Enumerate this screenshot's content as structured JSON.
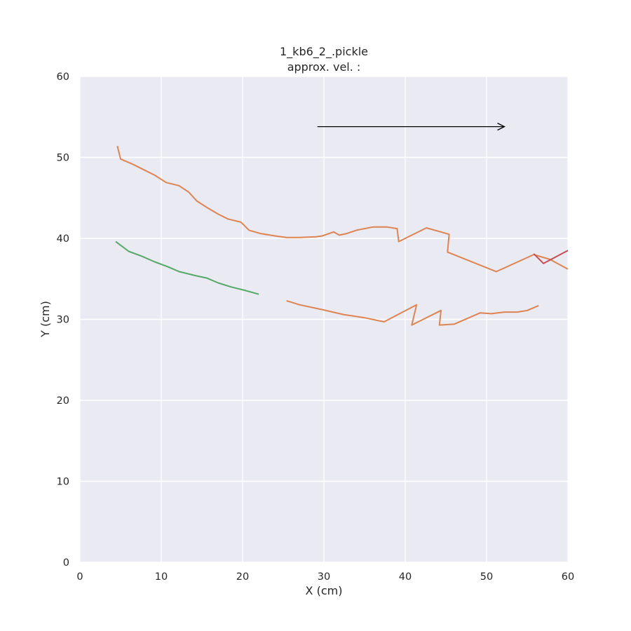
{
  "chart_data": {
    "type": "line",
    "title": "1_kb6_2_.pickle",
    "subtitle": "approx. vel. :",
    "xlabel": "X (cm)",
    "ylabel": "Y (cm)",
    "xlim": [
      0,
      60
    ],
    "ylim": [
      0,
      60
    ],
    "xticks": [
      0,
      10,
      20,
      30,
      40,
      50,
      60
    ],
    "yticks": [
      0,
      10,
      20,
      30,
      40,
      50,
      60
    ],
    "grid": true,
    "background": "#eaeaf2",
    "arrow": {
      "from": [
        29.2,
        53.8
      ],
      "to": [
        52.2,
        53.8
      ],
      "color": "#000000"
    },
    "series": [
      {
        "color": "#dd8452",
        "points": [
          [
            4.6,
            51.4
          ],
          [
            5.0,
            49.8
          ],
          [
            6.4,
            49.2
          ],
          [
            7.8,
            48.5
          ],
          [
            9.2,
            47.8
          ],
          [
            10.6,
            46.9
          ],
          [
            12.2,
            46.5
          ],
          [
            13.4,
            45.7
          ],
          [
            14.4,
            44.6
          ],
          [
            15.8,
            43.7
          ],
          [
            17.0,
            43.0
          ],
          [
            18.2,
            42.4
          ],
          [
            19.8,
            42.0
          ],
          [
            20.8,
            41.0
          ],
          [
            22.2,
            40.6
          ],
          [
            24.0,
            40.3
          ],
          [
            25.4,
            40.1
          ],
          [
            27.0,
            40.1
          ],
          [
            29.0,
            40.2
          ],
          [
            29.8,
            40.3
          ],
          [
            31.2,
            40.8
          ],
          [
            31.9,
            40.4
          ],
          [
            32.8,
            40.6
          ],
          [
            34.0,
            41.0
          ],
          [
            36.0,
            41.4
          ],
          [
            37.8,
            41.4
          ],
          [
            39.0,
            41.2
          ],
          [
            39.2,
            39.6
          ],
          [
            42.6,
            41.3
          ],
          [
            45.4,
            40.5
          ],
          [
            45.2,
            38.3
          ],
          [
            51.2,
            35.9
          ],
          [
            55.8,
            38.0
          ],
          [
            57.8,
            37.4
          ],
          [
            60.0,
            36.2
          ]
        ]
      },
      {
        "color": "#dd8452",
        "points": [
          [
            25.4,
            32.3
          ],
          [
            27.0,
            31.8
          ],
          [
            29.8,
            31.2
          ],
          [
            32.4,
            30.6
          ],
          [
            35.0,
            30.2
          ],
          [
            37.4,
            29.7
          ],
          [
            41.4,
            31.8
          ],
          [
            40.8,
            29.3
          ],
          [
            44.4,
            31.1
          ],
          [
            44.2,
            29.3
          ],
          [
            46.0,
            29.4
          ],
          [
            49.2,
            30.8
          ],
          [
            50.6,
            30.7
          ],
          [
            52.2,
            30.9
          ],
          [
            53.8,
            30.9
          ],
          [
            55.0,
            31.1
          ],
          [
            56.4,
            31.7
          ]
        ]
      },
      {
        "color": "#55a868",
        "points": [
          [
            4.4,
            39.6
          ],
          [
            6.0,
            38.4
          ],
          [
            7.6,
            37.8
          ],
          [
            9.2,
            37.1
          ],
          [
            10.8,
            36.5
          ],
          [
            12.2,
            35.9
          ],
          [
            14.2,
            35.4
          ],
          [
            15.6,
            35.1
          ],
          [
            17.0,
            34.5
          ],
          [
            18.6,
            34.0
          ],
          [
            20.2,
            33.6
          ],
          [
            22.0,
            33.1
          ]
        ]
      },
      {
        "color": "#c44e52",
        "points": [
          [
            55.8,
            38.1
          ],
          [
            57.0,
            36.9
          ],
          [
            60.0,
            38.5
          ]
        ]
      }
    ]
  }
}
